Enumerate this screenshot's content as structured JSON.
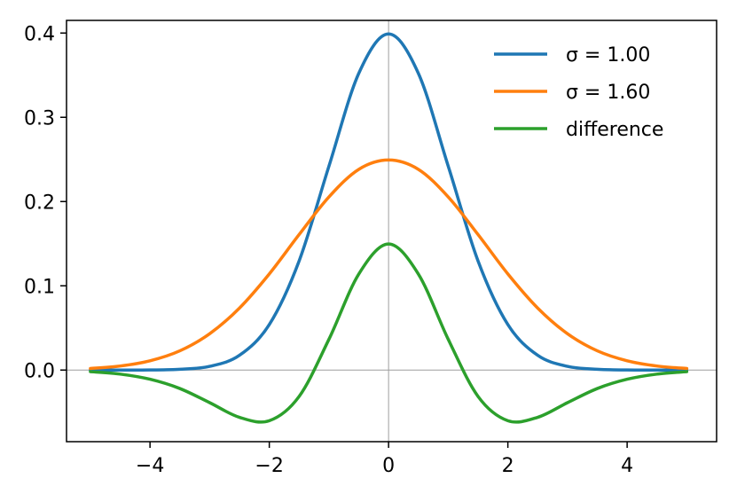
{
  "chart_data": {
    "type": "line",
    "title": "",
    "xlabel": "",
    "ylabel": "",
    "xlim": [
      -5.4,
      5.5
    ],
    "ylim": [
      -0.085,
      0.415
    ],
    "xticks": [
      -4,
      -2,
      0,
      2,
      4
    ],
    "xtick_labels": [
      "−4",
      "−2",
      "0",
      "2",
      "4"
    ],
    "yticks": [
      0.0,
      0.1,
      0.2,
      0.3,
      0.4
    ],
    "ytick_labels": [
      "0.0",
      "0.1",
      "0.2",
      "0.3",
      "0.4"
    ],
    "grid": false,
    "reference_lines": {
      "x": 0,
      "y": 0,
      "color": "#9e9e9e"
    },
    "legend_position": "top-right",
    "x_range": [
      -5,
      5
    ],
    "series": [
      {
        "name": "σ = 1.00",
        "color": "#1f77b4",
        "x": [
          -5,
          -4.5,
          -4,
          -3.5,
          -3,
          -2.5,
          -2,
          -1.5,
          -1,
          -0.5,
          0,
          0.5,
          1,
          1.5,
          2,
          2.5,
          3,
          3.5,
          4,
          4.5,
          5
        ],
        "values": [
          0.0,
          0.0,
          0.0001,
          0.0009,
          0.0044,
          0.0175,
          0.054,
          0.1295,
          0.242,
          0.3521,
          0.3989,
          0.3521,
          0.242,
          0.1295,
          0.054,
          0.0175,
          0.0044,
          0.0009,
          0.0001,
          0.0,
          0.0
        ]
      },
      {
        "name": "σ = 1.60",
        "color": "#ff7f0e",
        "x": [
          -5,
          -4.5,
          -4,
          -3.5,
          -3,
          -2.5,
          -2,
          -1.5,
          -1,
          -0.5,
          0,
          0.5,
          1,
          1.5,
          2,
          2.5,
          3,
          3.5,
          4,
          4.5,
          5
        ],
        "values": [
          0.0019,
          0.0048,
          0.011,
          0.0228,
          0.0431,
          0.0736,
          0.1141,
          0.1608,
          0.2055,
          0.2382,
          0.2493,
          0.2382,
          0.2055,
          0.1608,
          0.1141,
          0.0736,
          0.0431,
          0.0228,
          0.011,
          0.0048,
          0.0019
        ]
      },
      {
        "name": "difference",
        "color": "#2ca02c",
        "x": [
          -5,
          -4.5,
          -4,
          -3.5,
          -3,
          -2.5,
          -2,
          -1.5,
          -1,
          -0.5,
          0,
          0.5,
          1,
          1.5,
          2,
          2.5,
          3,
          3.5,
          4,
          4.5,
          5
        ],
        "values": [
          -0.0019,
          -0.0048,
          -0.0109,
          -0.0219,
          -0.0387,
          -0.0561,
          -0.0601,
          -0.0313,
          0.0365,
          0.1139,
          0.1496,
          0.1139,
          0.0365,
          -0.0313,
          -0.0601,
          -0.0561,
          -0.0387,
          -0.0219,
          -0.0109,
          -0.0048,
          -0.0019
        ]
      }
    ]
  }
}
